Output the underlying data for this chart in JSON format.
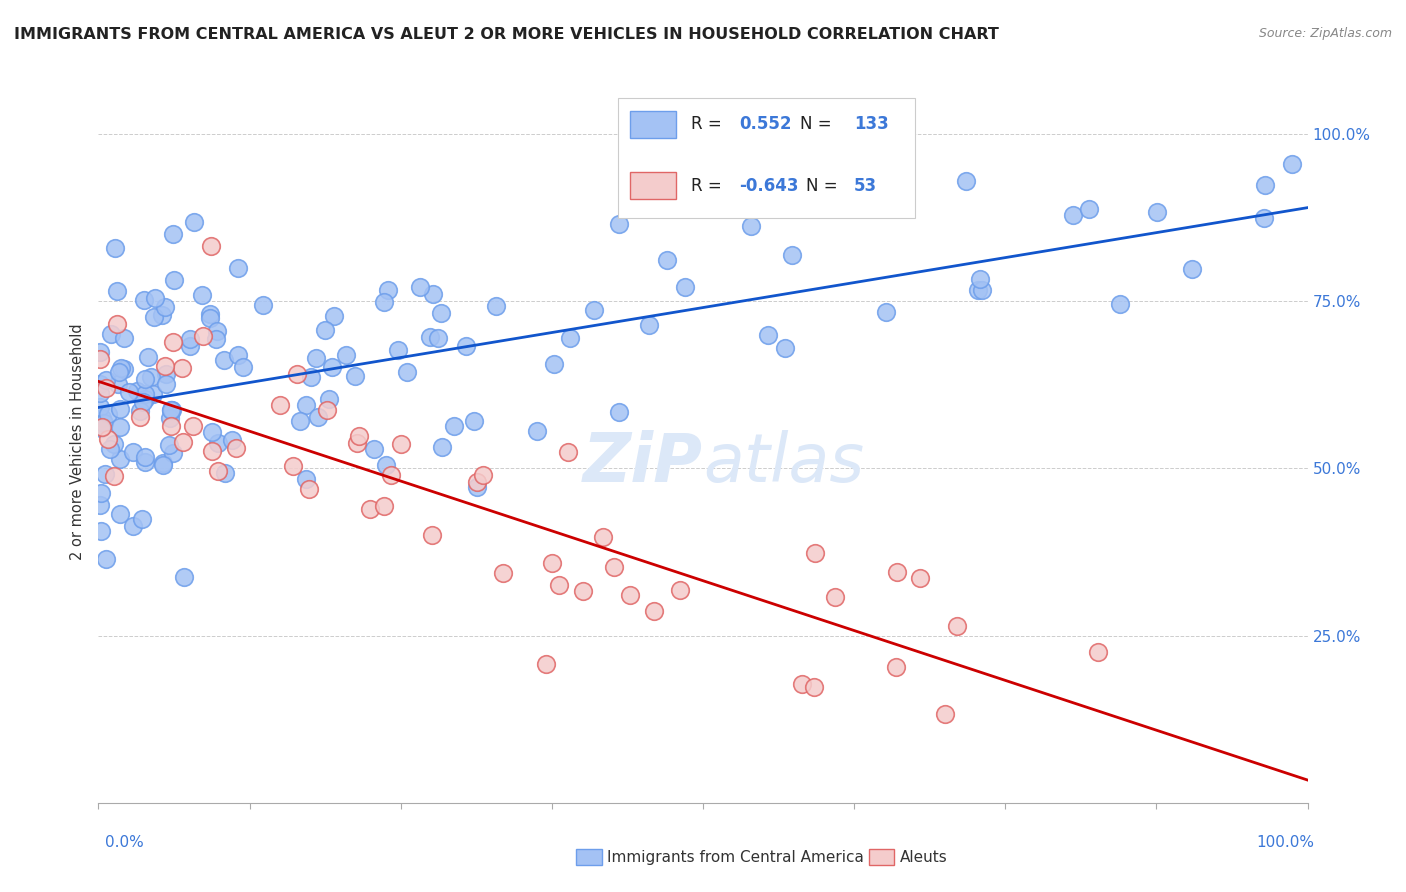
{
  "title": "IMMIGRANTS FROM CENTRAL AMERICA VS ALEUT 2 OR MORE VEHICLES IN HOUSEHOLD CORRELATION CHART",
  "source": "Source: ZipAtlas.com",
  "ylabel": "2 or more Vehicles in Household",
  "blue_R": "0.552",
  "blue_N": "133",
  "pink_R": "-0.643",
  "pink_N": "53",
  "blue_color": "#a4c2f4",
  "pink_color": "#f4cccc",
  "blue_edge_color": "#6d9eeb",
  "pink_edge_color": "#e06666",
  "blue_line_color": "#1155cc",
  "pink_line_color": "#cc0000",
  "legend_label_blue": "Immigrants from Central America",
  "legend_label_pink": "Aleuts",
  "watermark": "ZiPatlas",
  "axis_color": "#3c78d8",
  "grid_color": "#b7b7b7"
}
